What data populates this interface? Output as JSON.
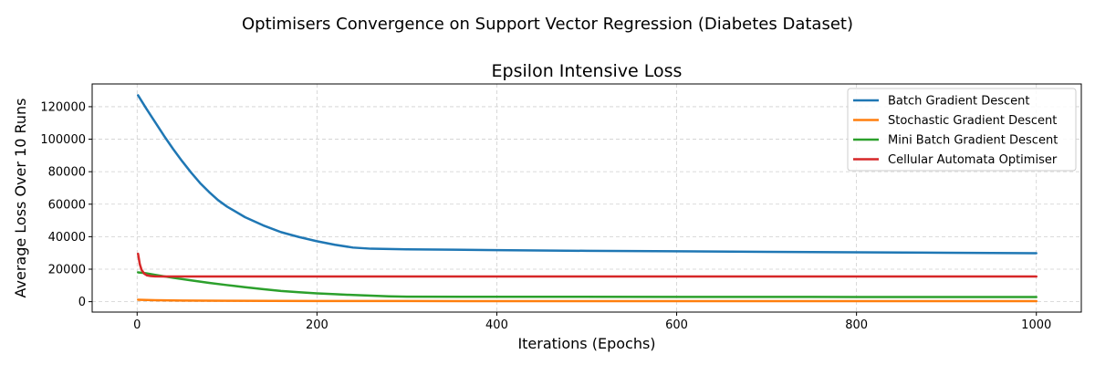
{
  "figure": {
    "suptitle": "Optimisers Convergence on Support Vector Regression (Diabetes Dataset)"
  },
  "chart_data": {
    "type": "line",
    "title": "Epsilon Intensive Loss",
    "xlabel": "Iterations (Epochs)",
    "ylabel": "Average Loss Over 10 Runs",
    "xlim": [
      -50,
      1050
    ],
    "ylim": [
      -6400,
      134000
    ],
    "xticks": [
      0,
      200,
      400,
      600,
      800,
      1000
    ],
    "yticks": [
      0,
      20000,
      40000,
      60000,
      80000,
      100000,
      120000
    ],
    "grid": true,
    "grid_style": "dashed",
    "legend_position": "top-right",
    "series": [
      {
        "name": "Batch Gradient Descent",
        "color": "#1f77b4",
        "x": [
          1,
          10,
          20,
          30,
          40,
          50,
          60,
          70,
          80,
          90,
          100,
          120,
          140,
          160,
          180,
          200,
          220,
          240,
          260,
          280,
          300,
          350,
          400,
          500,
          600,
          700,
          800,
          900,
          1000
        ],
        "y": [
          127000,
          119000,
          110500,
          102000,
          94000,
          86500,
          79500,
          73000,
          67500,
          62500,
          58500,
          52000,
          47000,
          42800,
          39800,
          37200,
          35000,
          33300,
          32600,
          32400,
          32200,
          32000,
          31700,
          31300,
          31000,
          30700,
          30400,
          30100,
          29800
        ]
      },
      {
        "name": "Stochastic Gradient Descent",
        "color": "#ff7f0e",
        "x": [
          1,
          20,
          50,
          100,
          150,
          200,
          300,
          400,
          600,
          800,
          1000
        ],
        "y": [
          1200,
          900,
          700,
          550,
          450,
          400,
          380,
          370,
          360,
          355,
          350
        ]
      },
      {
        "name": "Mini Batch Gradient Descent",
        "color": "#2ca02c",
        "x": [
          1,
          10,
          20,
          40,
          60,
          80,
          100,
          120,
          140,
          160,
          180,
          200,
          220,
          240,
          260,
          280,
          300,
          400,
          600,
          800,
          1000
        ],
        "y": [
          18000,
          17500,
          16500,
          14700,
          13100,
          11600,
          10200,
          8900,
          7700,
          6600,
          5800,
          5100,
          4600,
          4100,
          3700,
          3300,
          3100,
          3000,
          2950,
          2900,
          2850
        ]
      },
      {
        "name": "Cellular Automata Optimiser",
        "color": "#d62728",
        "x": [
          1,
          3,
          5,
          8,
          11,
          15,
          20,
          30,
          50,
          100,
          200,
          400,
          600,
          800,
          1000
        ],
        "y": [
          29500,
          23000,
          19500,
          17200,
          16200,
          15800,
          15600,
          15500,
          15500,
          15500,
          15500,
          15500,
          15500,
          15500,
          15500
        ]
      }
    ]
  }
}
